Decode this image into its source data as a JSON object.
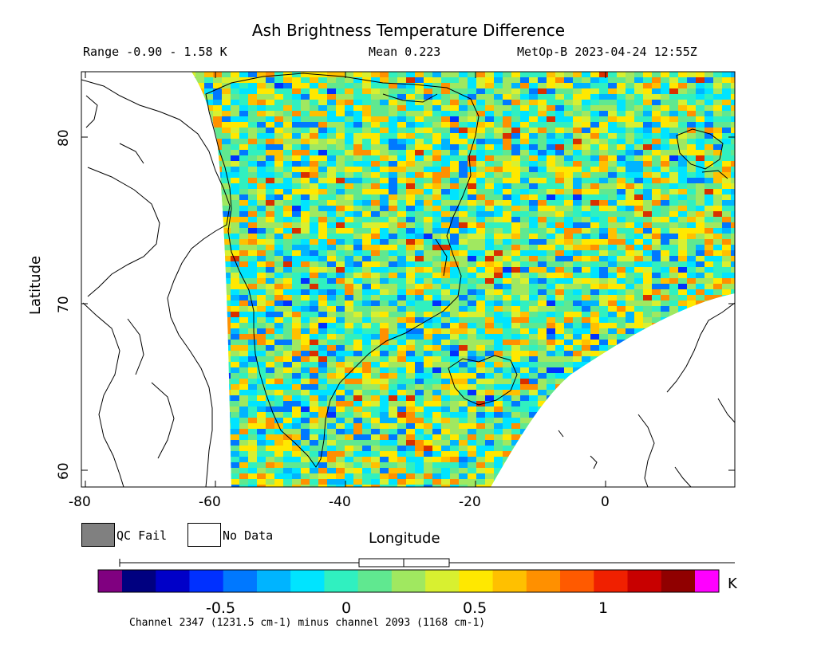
{
  "header": {
    "title": "Ash Brightness Temperature Difference",
    "range": "Range -0.90 - 1.58 K",
    "mean": "Mean 0.223",
    "satellite": "MetOp-B 2023-04-24 12:55Z"
  },
  "axes": {
    "ylabel": "Latitude",
    "xlabel": "Longitude",
    "y_ticks": [
      "60",
      "70",
      "80"
    ],
    "x_ticks": [
      "-80",
      "-60",
      "-40",
      "-20",
      "0"
    ]
  },
  "legend": {
    "qc_fail": "QC Fail",
    "no_data": "No Data",
    "qc_color": "#808080"
  },
  "colorbar": {
    "ticks": [
      "-0.5",
      "0",
      "0.5",
      "1"
    ],
    "unit": "K",
    "colors": [
      "#800080",
      "#000080",
      "#0000c8",
      "#0030ff",
      "#0078ff",
      "#00b4ff",
      "#00e4ff",
      "#30f0c0",
      "#60e890",
      "#a0e860",
      "#d8f030",
      "#ffe800",
      "#ffc000",
      "#ff9000",
      "#ff5a00",
      "#f02000",
      "#c80000",
      "#900000",
      "#ff00ff"
    ]
  },
  "footer": "Channel 2347 (1231.5 cm-1) minus channel 2093 (1168 cm-1)"
}
